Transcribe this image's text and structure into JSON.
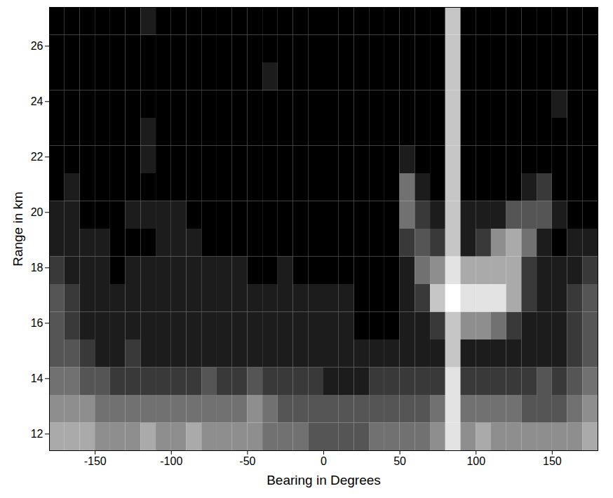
{
  "chart_data": {
    "type": "heatmap",
    "xlabel": "Bearing in Degrees",
    "ylabel": "Range in km",
    "xlim": [
      -180,
      180
    ],
    "ylim": [
      11.4,
      27.4
    ],
    "xticks": [
      -150,
      -100,
      -50,
      0,
      50,
      100,
      150
    ],
    "yticks": [
      12,
      14,
      16,
      18,
      20,
      22,
      24,
      26
    ],
    "color": "gray",
    "zlim": [
      0,
      9
    ],
    "x_bins": [
      -180,
      -170,
      -160,
      -150,
      -140,
      -130,
      -120,
      -110,
      -100,
      -90,
      -80,
      -70,
      -60,
      -50,
      -40,
      -30,
      -20,
      -10,
      0,
      10,
      20,
      30,
      40,
      50,
      60,
      70,
      80,
      90,
      100,
      110,
      120,
      130,
      140,
      150,
      160,
      170,
      180
    ],
    "y_bins": [
      11.4,
      12.4,
      13.4,
      14.4,
      15.4,
      16.4,
      17.4,
      18.4,
      19.4,
      20.4,
      21.4,
      22.4,
      23.4,
      24.4,
      25.4,
      26.4,
      27.4
    ],
    "cells": [
      [
        6,
        6,
        6,
        5,
        5,
        5,
        6,
        5,
        5,
        6,
        5,
        5,
        5,
        5,
        4,
        4,
        4,
        3,
        3,
        3,
        3,
        4,
        4,
        4,
        4,
        5,
        8,
        5,
        6,
        5,
        5,
        5,
        5,
        5,
        5,
        6
      ],
      [
        5,
        5,
        5,
        4,
        4,
        4,
        4,
        4,
        4,
        4,
        4,
        4,
        4,
        5,
        4,
        3,
        3,
        3,
        3,
        3,
        3,
        3,
        3,
        3,
        3,
        4,
        8,
        4,
        4,
        4,
        4,
        3,
        3,
        3,
        4,
        5
      ],
      [
        4,
        4,
        3,
        3,
        2,
        2,
        2,
        2,
        2,
        2,
        3,
        2,
        2,
        3,
        2,
        2,
        2,
        2,
        1,
        1,
        1,
        2,
        2,
        2,
        2,
        2,
        8,
        2,
        2,
        2,
        2,
        2,
        3,
        2,
        3,
        4
      ],
      [
        3,
        3,
        2,
        1,
        1,
        2,
        1,
        1,
        1,
        1,
        1,
        1,
        1,
        1,
        1,
        1,
        1,
        1,
        1,
        1,
        1,
        1,
        1,
        1,
        1,
        1,
        7,
        1,
        1,
        1,
        1,
        1,
        1,
        1,
        2,
        3
      ],
      [
        3,
        2,
        1,
        1,
        1,
        1,
        1,
        1,
        1,
        1,
        1,
        1,
        1,
        1,
        1,
        1,
        1,
        1,
        1,
        1,
        0,
        0,
        0,
        1,
        1,
        2,
        7,
        5,
        5,
        4,
        2,
        1,
        1,
        1,
        2,
        3
      ],
      [
        3,
        2,
        1,
        1,
        1,
        1,
        1,
        1,
        1,
        1,
        1,
        1,
        1,
        1,
        1,
        1,
        1,
        1,
        1,
        1,
        0,
        0,
        0,
        1,
        2,
        7,
        9,
        8,
        8,
        8,
        6,
        2,
        1,
        1,
        2,
        3
      ],
      [
        2,
        1,
        1,
        1,
        0,
        1,
        1,
        1,
        1,
        1,
        1,
        1,
        1,
        0,
        0,
        1,
        0,
        0,
        0,
        0,
        0,
        0,
        0,
        1,
        4,
        5,
        8,
        6,
        6,
        6,
        6,
        2,
        1,
        1,
        1,
        2
      ],
      [
        1,
        1,
        1,
        1,
        0,
        0,
        0,
        1,
        1,
        1,
        0,
        0,
        0,
        0,
        0,
        0,
        0,
        0,
        0,
        0,
        0,
        0,
        0,
        2,
        3,
        2,
        7,
        1,
        2,
        5,
        6,
        4,
        1,
        0,
        1,
        1
      ],
      [
        1,
        1,
        0,
        0,
        0,
        1,
        1,
        1,
        1,
        0,
        0,
        0,
        0,
        0,
        0,
        0,
        0,
        0,
        0,
        0,
        0,
        0,
        0,
        4,
        2,
        1,
        7,
        1,
        1,
        1,
        3,
        3,
        3,
        1,
        0,
        0
      ],
      [
        0,
        1,
        0,
        0,
        0,
        0,
        0,
        0,
        0,
        0,
        0,
        0,
        0,
        0,
        0,
        0,
        0,
        0,
        0,
        0,
        0,
        0,
        0,
        4,
        1,
        0,
        7,
        0,
        0,
        0,
        0,
        1,
        2,
        0,
        0,
        0
      ],
      [
        0,
        0,
        0,
        0,
        0,
        0,
        1,
        0,
        0,
        0,
        0,
        0,
        0,
        0,
        0,
        0,
        0,
        0,
        0,
        0,
        0,
        0,
        0,
        1,
        0,
        0,
        7,
        0,
        0,
        0,
        0,
        0,
        0,
        0,
        0,
        0
      ],
      [
        0,
        0,
        0,
        0,
        0,
        0,
        1,
        0,
        0,
        0,
        0,
        0,
        0,
        0,
        0,
        0,
        0,
        0,
        0,
        0,
        0,
        0,
        0,
        0,
        0,
        0,
        7,
        0,
        0,
        0,
        0,
        0,
        0,
        0,
        0,
        0
      ],
      [
        0,
        0,
        0,
        0,
        0,
        0,
        0,
        0,
        0,
        0,
        0,
        0,
        0,
        0,
        0,
        0,
        0,
        0,
        0,
        0,
        0,
        0,
        0,
        0,
        0,
        0,
        7,
        0,
        0,
        0,
        0,
        0,
        0,
        1,
        0,
        0
      ],
      [
        0,
        0,
        0,
        0,
        0,
        0,
        0,
        0,
        0,
        0,
        0,
        0,
        0,
        0,
        1,
        0,
        0,
        0,
        0,
        0,
        0,
        0,
        0,
        0,
        0,
        0,
        7,
        0,
        0,
        0,
        0,
        0,
        0,
        0,
        0,
        0
      ],
      [
        0,
        0,
        0,
        0,
        0,
        0,
        0,
        0,
        0,
        0,
        0,
        0,
        0,
        0,
        0,
        0,
        0,
        0,
        0,
        0,
        0,
        0,
        0,
        0,
        0,
        0,
        7,
        0,
        0,
        0,
        0,
        0,
        0,
        0,
        0,
        0
      ],
      [
        0,
        0,
        0,
        0,
        0,
        0,
        1,
        0,
        0,
        0,
        0,
        0,
        0,
        0,
        0,
        0,
        0,
        0,
        0,
        0,
        0,
        0,
        0,
        0,
        0,
        0,
        7,
        0,
        0,
        0,
        0,
        0,
        0,
        0,
        0,
        0
      ]
    ]
  }
}
